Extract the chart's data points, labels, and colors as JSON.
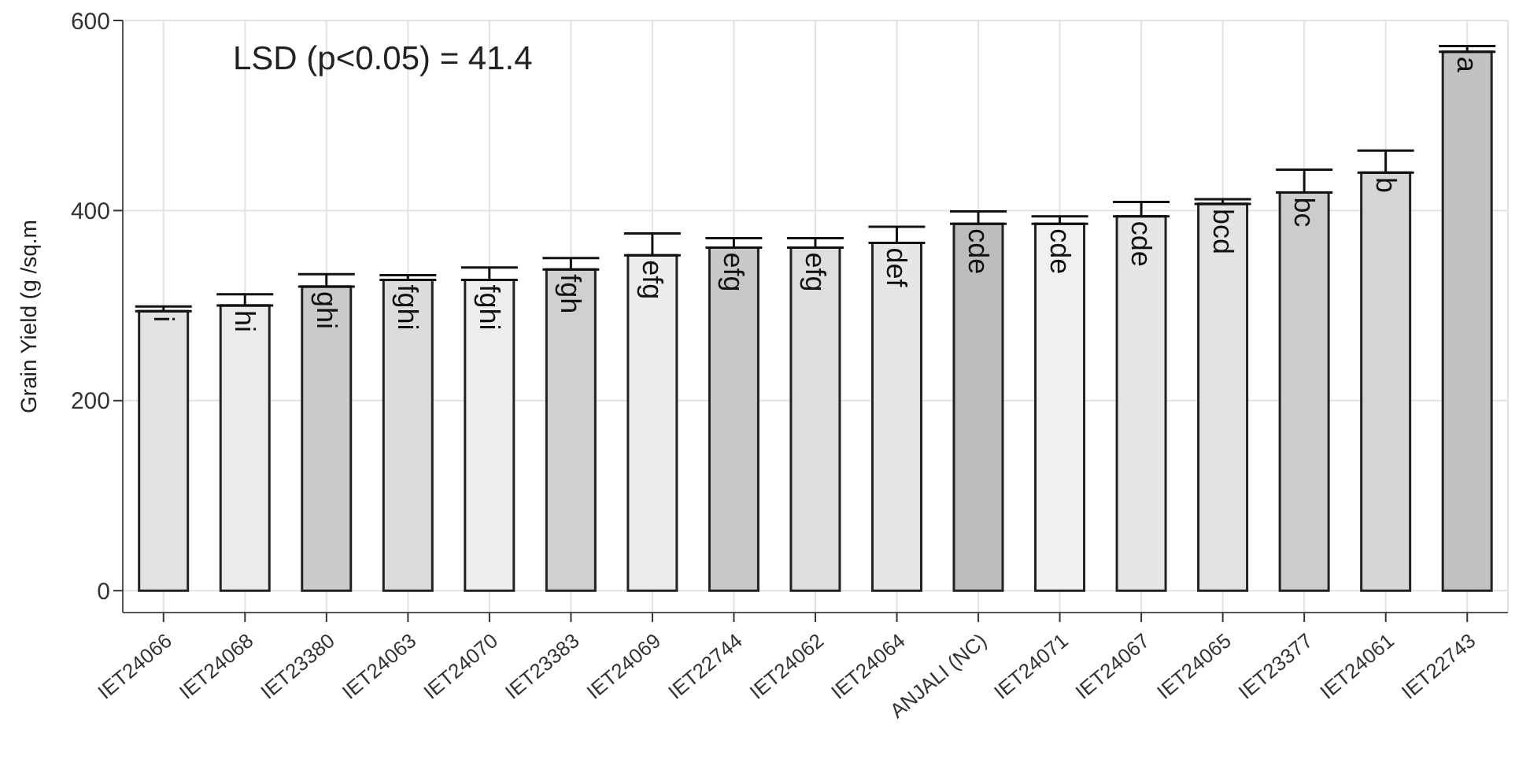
{
  "chart_data": {
    "type": "bar",
    "categories": [
      "IET24066",
      "IET24068",
      "IET23380",
      "IET24063",
      "IET24070",
      "IET23383",
      "IET24069",
      "IET22744",
      "IET24062",
      "IET24064",
      "ANJALI (NC)",
      "IET24071",
      "IET24067",
      "IET24065",
      "IET23377",
      "IET24061",
      "IET22743"
    ],
    "values": [
      294,
      300,
      320,
      327,
      327,
      338,
      353,
      361,
      361,
      366,
      386,
      386,
      394,
      407,
      419,
      440,
      567
    ],
    "errors": [
      [
        294,
        299
      ],
      [
        300,
        312
      ],
      [
        320,
        333
      ],
      [
        327,
        332
      ],
      [
        327,
        340
      ],
      [
        338,
        350
      ],
      [
        353,
        376
      ],
      [
        361,
        371
      ],
      [
        361,
        371
      ],
      [
        366,
        383
      ],
      [
        386,
        399
      ],
      [
        386,
        394
      ],
      [
        394,
        409
      ],
      [
        407,
        412
      ],
      [
        419,
        443
      ],
      [
        440,
        463
      ],
      [
        567,
        573
      ]
    ],
    "colors": [
      "#e3e3e3",
      "#ebebeb",
      "#cbcbcb",
      "#dcdcdc",
      "#ededed",
      "#d0d0d0",
      "#ececec",
      "#c8c8c8",
      "#dedede",
      "#e6e6e6",
      "#bdbdbd",
      "#f0f0f0",
      "#e6e6e6",
      "#e3e3e3",
      "#cccccc",
      "#d6d6d6",
      "#c2c2c2"
    ],
    "value_labels": [
      "i",
      "hi",
      "ghi",
      "fghi",
      "fghi",
      "fgh",
      "efg",
      "efg",
      "efg",
      "def",
      "cde",
      "cde",
      "cde",
      "bcd",
      "bc",
      "b",
      "a"
    ],
    "ylabel": "Grain Yield (g /sq.m",
    "annotations": [
      "LSD (p<0.05) = 41.4"
    ],
    "ylim": [
      -23,
      600
    ],
    "yticks": [
      0,
      200,
      400,
      600
    ],
    "grid": true,
    "legend": false
  }
}
